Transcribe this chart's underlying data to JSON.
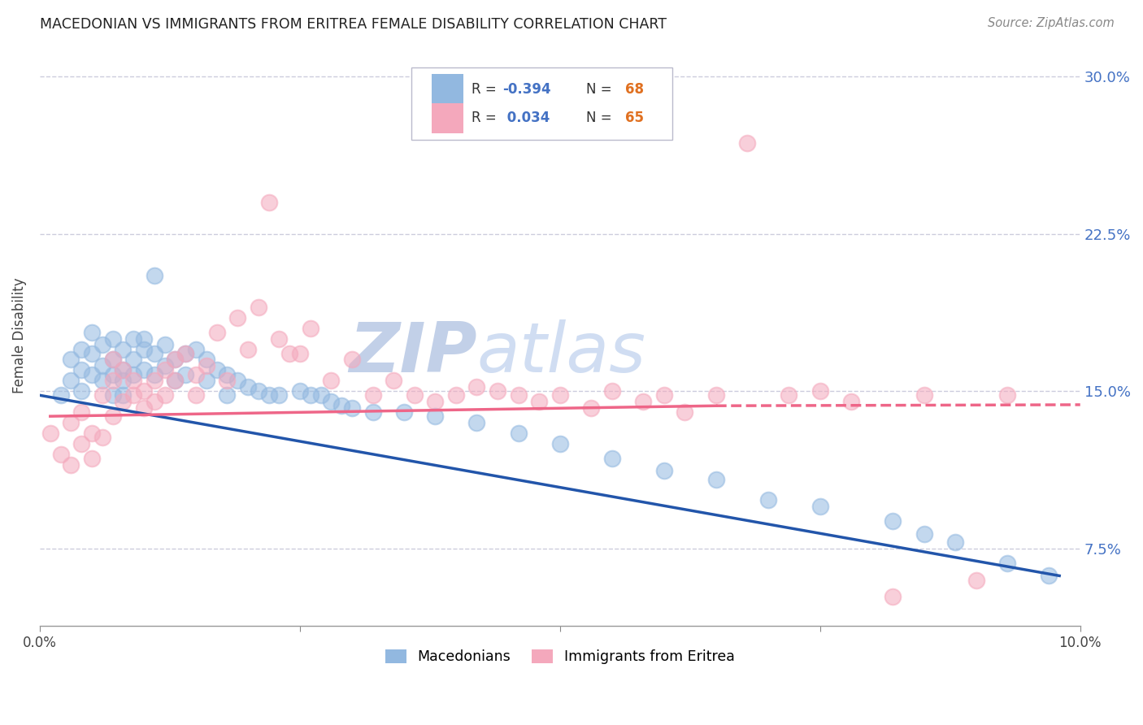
{
  "title": "MACEDONIAN VS IMMIGRANTS FROM ERITREA FEMALE DISABILITY CORRELATION CHART",
  "source": "Source: ZipAtlas.com",
  "ylabel": "Female Disability",
  "yticks": [
    0.075,
    0.15,
    0.225,
    0.3
  ],
  "ytick_labels": [
    "7.5%",
    "15.0%",
    "22.5%",
    "30.0%"
  ],
  "xlim": [
    0.0,
    0.1
  ],
  "ylim": [
    0.038,
    0.315
  ],
  "mac_R": "-0.394",
  "mac_N": "68",
  "eri_R": "0.034",
  "eri_N": "65",
  "mac_color": "#92b8e0",
  "eri_color": "#f4a8bc",
  "mac_line_color": "#2255aa",
  "eri_line_color": "#ee6688",
  "background_color": "#ffffff",
  "grid_color": "#ccccdd",
  "watermark_color": "#c8d4ec",
  "mac_x": [
    0.002,
    0.003,
    0.003,
    0.004,
    0.004,
    0.004,
    0.005,
    0.005,
    0.005,
    0.006,
    0.006,
    0.006,
    0.007,
    0.007,
    0.007,
    0.007,
    0.008,
    0.008,
    0.008,
    0.008,
    0.009,
    0.009,
    0.009,
    0.01,
    0.01,
    0.01,
    0.011,
    0.011,
    0.011,
    0.012,
    0.012,
    0.013,
    0.013,
    0.014,
    0.014,
    0.015,
    0.016,
    0.016,
    0.017,
    0.018,
    0.018,
    0.019,
    0.02,
    0.021,
    0.022,
    0.023,
    0.025,
    0.026,
    0.027,
    0.028,
    0.029,
    0.03,
    0.032,
    0.035,
    0.038,
    0.042,
    0.046,
    0.05,
    0.055,
    0.06,
    0.065,
    0.07,
    0.075,
    0.082,
    0.085,
    0.088,
    0.093,
    0.097
  ],
  "mac_y": [
    0.148,
    0.155,
    0.165,
    0.16,
    0.15,
    0.17,
    0.158,
    0.168,
    0.178,
    0.162,
    0.172,
    0.155,
    0.165,
    0.175,
    0.158,
    0.148,
    0.16,
    0.17,
    0.155,
    0.148,
    0.165,
    0.175,
    0.158,
    0.17,
    0.16,
    0.175,
    0.205,
    0.168,
    0.158,
    0.172,
    0.162,
    0.165,
    0.155,
    0.168,
    0.158,
    0.17,
    0.165,
    0.155,
    0.16,
    0.158,
    0.148,
    0.155,
    0.152,
    0.15,
    0.148,
    0.148,
    0.15,
    0.148,
    0.148,
    0.145,
    0.143,
    0.142,
    0.14,
    0.14,
    0.138,
    0.135,
    0.13,
    0.125,
    0.118,
    0.112,
    0.108,
    0.098,
    0.095,
    0.088,
    0.082,
    0.078,
    0.068,
    0.062
  ],
  "eri_x": [
    0.001,
    0.002,
    0.003,
    0.003,
    0.004,
    0.004,
    0.005,
    0.005,
    0.006,
    0.006,
    0.007,
    0.007,
    0.007,
    0.008,
    0.008,
    0.009,
    0.009,
    0.01,
    0.01,
    0.011,
    0.011,
    0.012,
    0.012,
    0.013,
    0.013,
    0.014,
    0.015,
    0.015,
    0.016,
    0.017,
    0.018,
    0.019,
    0.02,
    0.021,
    0.022,
    0.023,
    0.024,
    0.025,
    0.026,
    0.028,
    0.03,
    0.032,
    0.034,
    0.036,
    0.038,
    0.04,
    0.042,
    0.044,
    0.046,
    0.048,
    0.05,
    0.053,
    0.055,
    0.058,
    0.06,
    0.062,
    0.065,
    0.068,
    0.072,
    0.075,
    0.078,
    0.082,
    0.085,
    0.09,
    0.093
  ],
  "eri_y": [
    0.13,
    0.12,
    0.115,
    0.135,
    0.125,
    0.14,
    0.118,
    0.13,
    0.128,
    0.148,
    0.138,
    0.155,
    0.165,
    0.145,
    0.16,
    0.148,
    0.155,
    0.142,
    0.15,
    0.155,
    0.145,
    0.148,
    0.16,
    0.155,
    0.165,
    0.168,
    0.148,
    0.158,
    0.162,
    0.178,
    0.155,
    0.185,
    0.17,
    0.19,
    0.24,
    0.175,
    0.168,
    0.168,
    0.18,
    0.155,
    0.165,
    0.148,
    0.155,
    0.148,
    0.145,
    0.148,
    0.152,
    0.15,
    0.148,
    0.145,
    0.148,
    0.142,
    0.15,
    0.145,
    0.148,
    0.14,
    0.148,
    0.268,
    0.148,
    0.15,
    0.145,
    0.052,
    0.148,
    0.06,
    0.148
  ]
}
